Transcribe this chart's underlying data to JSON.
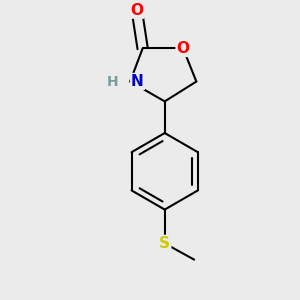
{
  "bg_color": "#ebebeb",
  "bond_color": "#000000",
  "bond_width": 1.5,
  "atom_colors": {
    "O": "#ff0000",
    "N": "#0000cc",
    "S": "#cccc00",
    "C": "#000000",
    "H": "#7a9e9e"
  },
  "font_size": 11,
  "xlim": [
    -1.6,
    1.6
  ],
  "ylim": [
    -2.2,
    1.8
  ]
}
